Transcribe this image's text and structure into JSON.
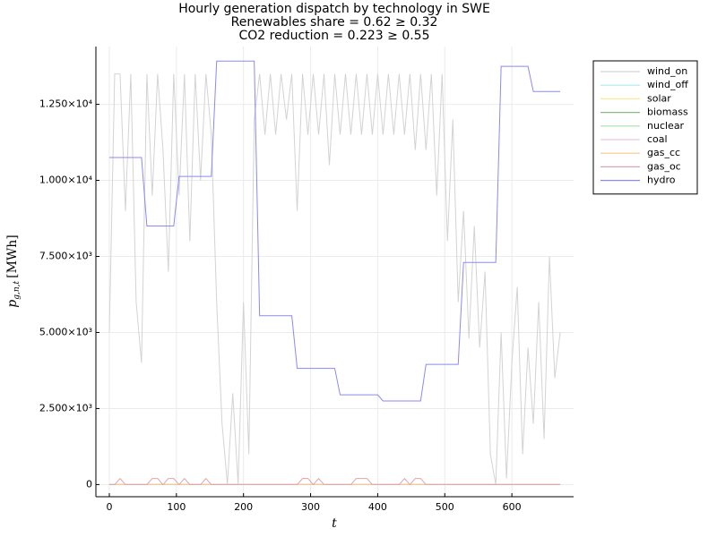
{
  "chart_data": {
    "type": "line",
    "title": [
      "Hourly generation dispatch by technology in SWE",
      "Renewables share = 0.62 ≥ 0.32",
      "CO2 reduction = 0.223 ≥ 0.55"
    ],
    "xlabel": "t",
    "ylabel": {
      "symbol": "p",
      "subscript": "g,n,t",
      "unit": "[MWh]"
    },
    "xlim": [
      -20,
      692
    ],
    "ylim": [
      -400,
      14400
    ],
    "xticks": [
      0,
      100,
      200,
      300,
      400,
      500,
      600
    ],
    "yticks": [
      0,
      {
        "value": 2500,
        "label": "2.500×10³"
      },
      {
        "value": 5000,
        "label": "5.000×10³"
      },
      {
        "value": 7500,
        "label": "7.500×10³"
      },
      {
        "value": 10000,
        "label": "1.000×10⁴"
      },
      {
        "value": 12500,
        "label": "1.250×10⁴"
      }
    ],
    "grid": true,
    "legend": "outside-top-right",
    "x": [
      0,
      8,
      16,
      24,
      32,
      40,
      48,
      56,
      64,
      72,
      80,
      88,
      96,
      104,
      112,
      120,
      128,
      136,
      144,
      152,
      160,
      168,
      176,
      184,
      192,
      200,
      208,
      216,
      224,
      232,
      240,
      248,
      256,
      264,
      272,
      280,
      288,
      296,
      304,
      312,
      320,
      328,
      336,
      344,
      352,
      360,
      368,
      376,
      384,
      392,
      400,
      408,
      416,
      424,
      432,
      440,
      448,
      456,
      464,
      472,
      480,
      488,
      496,
      504,
      512,
      520,
      528,
      536,
      544,
      552,
      560,
      568,
      576,
      584,
      592,
      600,
      608,
      616,
      624,
      632,
      640,
      648,
      656,
      664,
      672
    ],
    "series": [
      {
        "name": "wind_on",
        "color": "#d3d3d3",
        "values": [
          5000,
          13500,
          13500,
          9000,
          13500,
          6000,
          4000,
          13500,
          9500,
          13500,
          11000,
          7000,
          13500,
          9500,
          13500,
          8000,
          13500,
          10000,
          13500,
          11500,
          6000,
          2000,
          0,
          3000,
          0,
          6000,
          1000,
          12000,
          13500,
          11500,
          13500,
          11500,
          13500,
          12000,
          13500,
          9000,
          13500,
          11500,
          13500,
          11500,
          13500,
          10500,
          13500,
          11500,
          13500,
          11500,
          13500,
          11500,
          13500,
          11500,
          13500,
          11500,
          13500,
          11500,
          13500,
          11500,
          13500,
          11000,
          13500,
          11000,
          13500,
          9500,
          13500,
          8000,
          12000,
          6000,
          9000,
          4800,
          8500,
          4500,
          7000,
          1000,
          0,
          5000,
          200,
          4000,
          6500,
          1000,
          4500,
          2000,
          6000,
          1500,
          7500,
          3500,
          5000
        ]
      },
      {
        "name": "wind_off",
        "color": "#a8eeee",
        "values": [
          0,
          0,
          0,
          0,
          0,
          0,
          0,
          0,
          0,
          0,
          0,
          0,
          0,
          0,
          0,
          0,
          0,
          0,
          0,
          0,
          0,
          0,
          0,
          0,
          0,
          0,
          0,
          0,
          0,
          0,
          0,
          0,
          0,
          0,
          0,
          0,
          0,
          0,
          0,
          0,
          0,
          0,
          0,
          0,
          0,
          0,
          0,
          0,
          0,
          0,
          0,
          0,
          0,
          0,
          0,
          0,
          0,
          0,
          0,
          0,
          0,
          0,
          0,
          0,
          0,
          0,
          0,
          0,
          0,
          0,
          0,
          0,
          0,
          0,
          0,
          0,
          0,
          0,
          0,
          0,
          0,
          0,
          0,
          0,
          0
        ]
      },
      {
        "name": "solar",
        "color": "#f5eb9a",
        "values": [
          0,
          0,
          0,
          0,
          0,
          0,
          0,
          0,
          0,
          0,
          0,
          0,
          0,
          0,
          0,
          0,
          0,
          0,
          0,
          0,
          0,
          0,
          0,
          0,
          0,
          0,
          0,
          0,
          0,
          0,
          0,
          0,
          0,
          0,
          0,
          0,
          0,
          0,
          0,
          0,
          0,
          0,
          0,
          0,
          0,
          0,
          0,
          0,
          0,
          0,
          0,
          0,
          0,
          0,
          0,
          0,
          0,
          0,
          0,
          0,
          0,
          0,
          0,
          0,
          0,
          0,
          0,
          0,
          0,
          0,
          0,
          0,
          0,
          0,
          0,
          0,
          0,
          0,
          0,
          0,
          0,
          0,
          0,
          0,
          0
        ]
      },
      {
        "name": "biomass",
        "color": "#7fbf7f",
        "values": [
          0,
          0,
          0,
          0,
          0,
          0,
          0,
          0,
          0,
          0,
          0,
          0,
          0,
          0,
          0,
          0,
          0,
          0,
          0,
          0,
          0,
          0,
          0,
          0,
          0,
          0,
          0,
          0,
          0,
          0,
          0,
          0,
          0,
          0,
          0,
          0,
          0,
          0,
          0,
          0,
          0,
          0,
          0,
          0,
          0,
          0,
          0,
          0,
          0,
          0,
          0,
          0,
          0,
          0,
          0,
          0,
          0,
          0,
          0,
          0,
          0,
          0,
          0,
          0,
          0,
          0,
          0,
          0,
          0,
          0,
          0,
          0,
          0,
          0,
          0,
          0,
          0,
          0,
          0,
          0,
          0,
          0,
          0,
          0,
          0
        ]
      },
      {
        "name": "nuclear",
        "color": "#a6e3a6",
        "values": [
          0,
          0,
          0,
          0,
          0,
          0,
          0,
          0,
          0,
          0,
          0,
          0,
          0,
          0,
          0,
          0,
          0,
          0,
          0,
          0,
          0,
          0,
          0,
          0,
          0,
          0,
          0,
          0,
          0,
          0,
          0,
          0,
          0,
          0,
          0,
          0,
          0,
          0,
          0,
          0,
          0,
          0,
          0,
          0,
          0,
          0,
          0,
          0,
          0,
          0,
          0,
          0,
          0,
          0,
          0,
          0,
          0,
          0,
          0,
          0,
          0,
          0,
          0,
          0,
          0,
          0,
          0,
          0,
          0,
          0,
          0,
          0,
          0,
          0,
          0,
          0,
          0,
          0,
          0,
          0,
          0,
          0,
          0,
          0,
          0
        ]
      },
      {
        "name": "coal",
        "color": "#f2c4e4",
        "values": [
          0,
          0,
          0,
          0,
          0,
          0,
          0,
          0,
          0,
          0,
          0,
          0,
          0,
          0,
          0,
          0,
          0,
          0,
          0,
          0,
          0,
          0,
          0,
          0,
          0,
          0,
          0,
          0,
          0,
          0,
          0,
          0,
          0,
          0,
          0,
          0,
          0,
          0,
          0,
          0,
          0,
          0,
          0,
          0,
          0,
          0,
          0,
          0,
          0,
          0,
          0,
          0,
          0,
          0,
          0,
          0,
          0,
          0,
          0,
          0,
          0,
          0,
          0,
          0,
          0,
          0,
          0,
          0,
          0,
          0,
          0,
          0,
          0,
          0,
          0,
          0,
          0,
          0,
          0,
          0,
          0,
          0,
          0,
          0,
          0
        ]
      },
      {
        "name": "gas_cc",
        "color": "#f5c98f",
        "values": [
          0,
          0,
          0,
          0,
          0,
          0,
          0,
          0,
          0,
          0,
          0,
          0,
          0,
          0,
          0,
          0,
          0,
          0,
          0,
          0,
          0,
          0,
          0,
          0,
          0,
          0,
          0,
          0,
          0,
          0,
          0,
          0,
          0,
          0,
          0,
          0,
          0,
          0,
          0,
          0,
          0,
          0,
          0,
          0,
          0,
          0,
          0,
          0,
          0,
          0,
          0,
          0,
          0,
          0,
          0,
          0,
          0,
          0,
          0,
          0,
          0,
          0,
          0,
          0,
          0,
          0,
          0,
          0,
          0,
          0,
          0,
          0,
          0,
          0,
          0,
          0,
          0,
          0,
          0,
          0,
          0,
          0,
          0,
          0,
          0
        ]
      },
      {
        "name": "gas_oc",
        "color": "#e0a3b0",
        "values": [
          0,
          0,
          200,
          0,
          0,
          0,
          0,
          0,
          200,
          200,
          0,
          200,
          200,
          0,
          200,
          0,
          0,
          0,
          200,
          0,
          0,
          0,
          0,
          0,
          0,
          0,
          0,
          0,
          0,
          0,
          0,
          0,
          0,
          0,
          0,
          0,
          200,
          200,
          0,
          200,
          0,
          0,
          0,
          0,
          0,
          0,
          200,
          200,
          200,
          0,
          0,
          0,
          0,
          0,
          0,
          200,
          0,
          200,
          200,
          0,
          0,
          0,
          0,
          0,
          0,
          0,
          0,
          0,
          0,
          0,
          0,
          0,
          0,
          0,
          0,
          0,
          0,
          0,
          0,
          0,
          0,
          0,
          0,
          0,
          0
        ]
      },
      {
        "name": "hydro",
        "color": "#8a8af2",
        "values": [
          10750,
          10750,
          10750,
          10750,
          10750,
          10750,
          10750,
          8500,
          8500,
          8500,
          8500,
          8500,
          8500,
          10130,
          10130,
          10130,
          10130,
          10130,
          10130,
          10130,
          13920,
          13920,
          13920,
          13920,
          13920,
          13920,
          13920,
          13920,
          5550,
          5550,
          5550,
          5550,
          5550,
          5550,
          5550,
          3820,
          3820,
          3820,
          3820,
          3820,
          3820,
          3820,
          3820,
          2950,
          2950,
          2950,
          2950,
          2950,
          2950,
          2950,
          2950,
          2750,
          2750,
          2750,
          2750,
          2750,
          2750,
          2750,
          2750,
          3950,
          3950,
          3950,
          3950,
          3950,
          3950,
          3950,
          7300,
          7300,
          7300,
          7300,
          7300,
          7300,
          7300,
          13750,
          13750,
          13750,
          13750,
          13750,
          13750,
          12920,
          12920,
          12920,
          12920,
          12920,
          12920
        ]
      }
    ]
  }
}
